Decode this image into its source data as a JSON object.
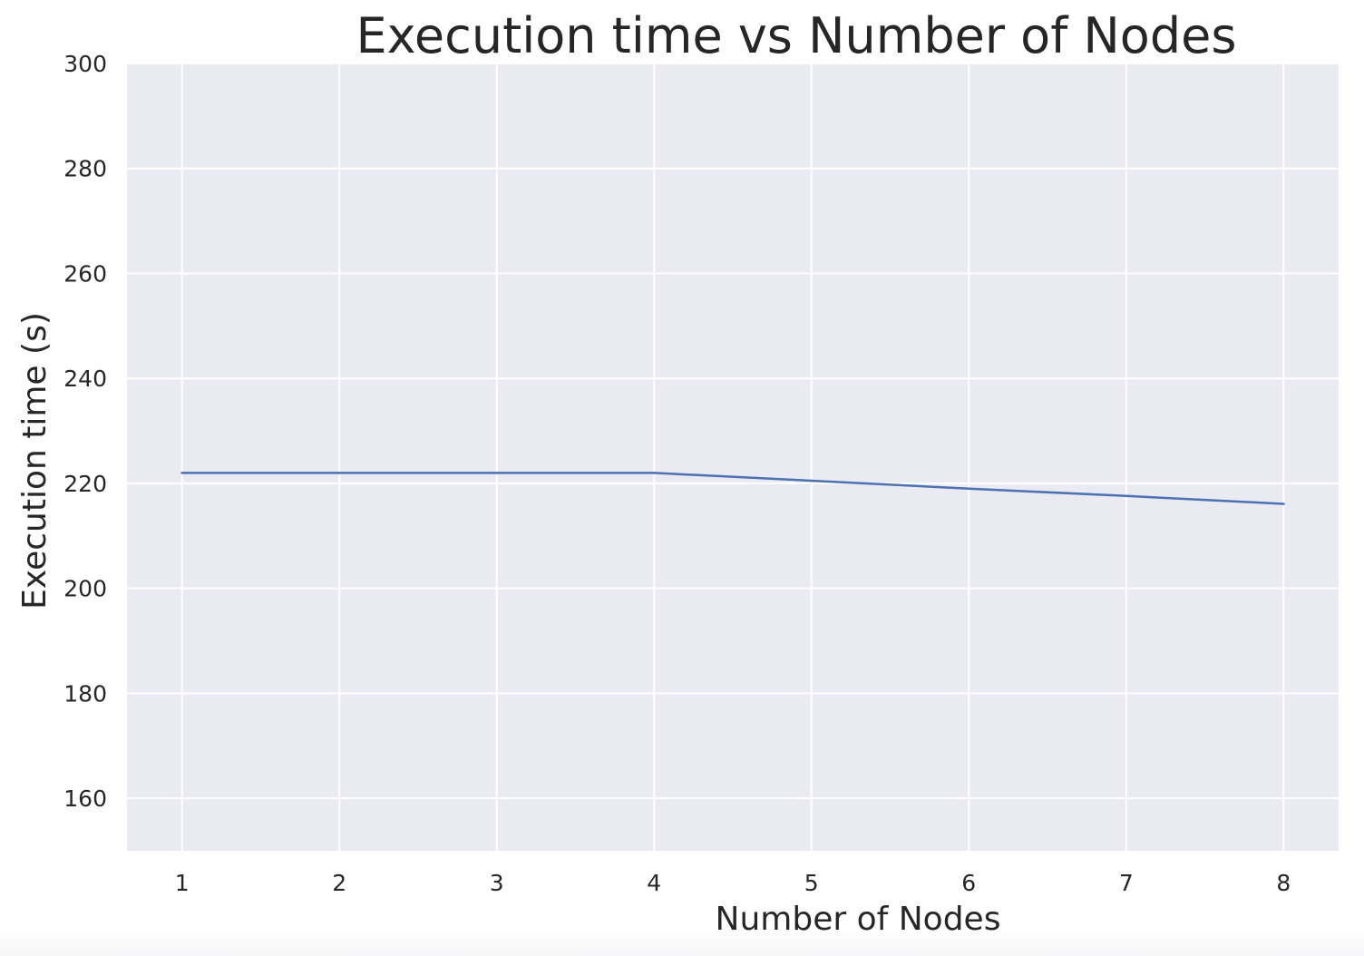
{
  "chart_data": {
    "type": "line",
    "title": "Execution time vs Number of Nodes",
    "xlabel": "Number of Nodes",
    "ylabel": "Execution time (s)",
    "x": [
      1,
      2,
      3,
      4,
      5,
      6,
      7,
      8
    ],
    "series": [
      {
        "values": [
          222,
          222,
          222,
          222,
          220.5,
          219,
          217.6,
          216.1
        ]
      }
    ],
    "xlim": [
      0.65,
      8.35
    ],
    "ylim": [
      150,
      300
    ],
    "xticks": [
      "1",
      "2",
      "3",
      "4",
      "5",
      "6",
      "7",
      "8"
    ],
    "yticks": [
      "160",
      "180",
      "200",
      "220",
      "240",
      "260",
      "280",
      "300"
    ],
    "grid": true,
    "legend": "none",
    "colors": {
      "line": "#4c72b0",
      "plot_background": "#eaeaf2",
      "grid": "#ffffff",
      "text": "#262626"
    }
  }
}
